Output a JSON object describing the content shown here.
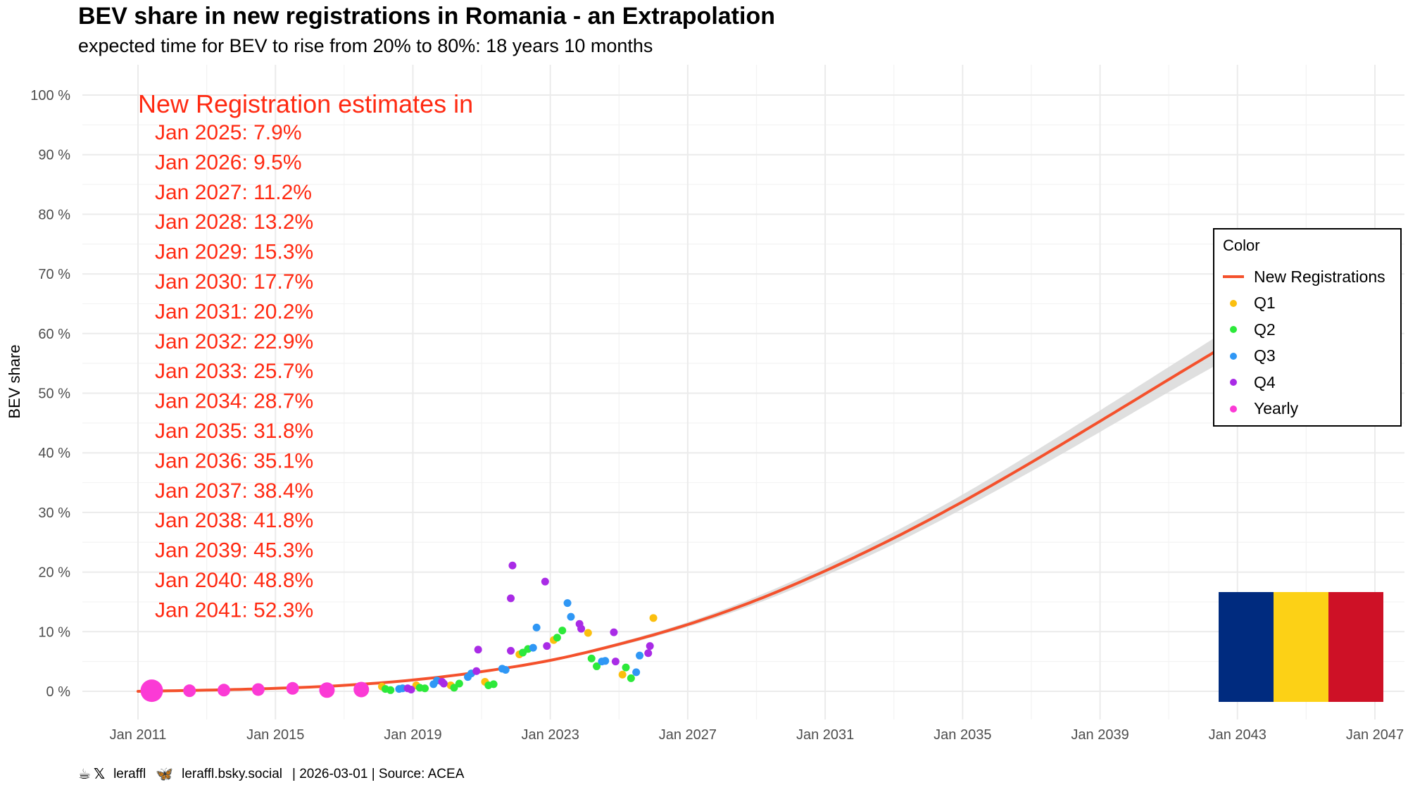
{
  "chart_data": {
    "type": "scatter",
    "title": "BEV share in new registrations in Romania - an Extrapolation",
    "subtitle": "expected time for BEV to rise from 20% to 80%: 18 years 10 months",
    "xlabel": "",
    "ylabel": "BEV share",
    "xlim": [
      2010.0,
      2047.0
    ],
    "ylim": [
      -2,
      102
    ],
    "x_ticks": [
      {
        "value": 2011,
        "label": "Jan 2011"
      },
      {
        "value": 2015,
        "label": "Jan 2015"
      },
      {
        "value": 2019,
        "label": "Jan 2019"
      },
      {
        "value": 2023,
        "label": "Jan 2023"
      },
      {
        "value": 2027,
        "label": "Jan 2027"
      },
      {
        "value": 2031,
        "label": "Jan 2031"
      },
      {
        "value": 2035,
        "label": "Jan 2035"
      },
      {
        "value": 2039,
        "label": "Jan 2039"
      },
      {
        "value": 2043,
        "label": "Jan 2043"
      },
      {
        "value": 2047,
        "label": "Jan 2047"
      }
    ],
    "y_ticks": [
      {
        "value": 0,
        "label": "0 %"
      },
      {
        "value": 10,
        "label": "10 %"
      },
      {
        "value": 20,
        "label": "20 %"
      },
      {
        "value": 30,
        "label": "30 %"
      },
      {
        "value": 40,
        "label": "40 %"
      },
      {
        "value": 50,
        "label": "50 %"
      },
      {
        "value": 60,
        "label": "60 %"
      },
      {
        "value": 70,
        "label": "70 %"
      },
      {
        "value": 80,
        "label": "80 %"
      },
      {
        "value": 90,
        "label": "90 %"
      },
      {
        "value": 100,
        "label": "100 %"
      }
    ],
    "grid": true,
    "legend_position": "right",
    "legend_title": "Color",
    "legend": [
      {
        "name": "New Registrations",
        "color": "#f4512c",
        "kind": "line"
      },
      {
        "name": "Q1",
        "color": "#fbbf0e",
        "kind": "point"
      },
      {
        "name": "Q2",
        "color": "#2ce93a",
        "kind": "point"
      },
      {
        "name": "Q3",
        "color": "#2f97f5",
        "kind": "point"
      },
      {
        "name": "Q4",
        "color": "#a92be6",
        "kind": "point"
      },
      {
        "name": "Yearly",
        "color": "#fb3ad5",
        "kind": "point"
      }
    ],
    "trend": {
      "name": "New Registrations",
      "color": "#f4512c",
      "x": [
        2011,
        2013,
        2015,
        2017,
        2019,
        2021,
        2023,
        2025,
        2027,
        2029,
        2031,
        2033,
        2035,
        2037,
        2039,
        2041,
        2042.5
      ],
      "y": [
        0.0,
        0.2,
        0.5,
        1.0,
        1.9,
        3.3,
        5.2,
        7.9,
        11.2,
        15.3,
        20.2,
        25.7,
        31.8,
        38.4,
        45.3,
        52.3,
        57.5
      ],
      "band_halfwidth": [
        0,
        0,
        0,
        0,
        0.1,
        0.2,
        0.2,
        0.3,
        0.4,
        0.6,
        0.8,
        1.0,
        1.2,
        1.5,
        1.8,
        2.1,
        2.4
      ]
    },
    "series": [
      {
        "name": "Yearly",
        "color": "#fb3ad5",
        "size": "large",
        "x": [
          2011.4,
          2012.5,
          2013.5,
          2014.5,
          2015.5,
          2016.5,
          2017.5
        ],
        "y": [
          0.1,
          0.1,
          0.2,
          0.3,
          0.5,
          0.2,
          0.3
        ]
      },
      {
        "name": "Q1",
        "color": "#fbbf0e",
        "x": [
          2018.1,
          2019.1,
          2020.1,
          2021.1,
          2022.1,
          2023.1,
          2024.1,
          2025.1,
          2026.0
        ],
        "y": [
          0.8,
          1.0,
          1.0,
          1.6,
          6.2,
          8.6,
          9.8,
          2.8,
          12.3
        ]
      },
      {
        "name": "Q2",
        "color": "#2ce93a",
        "x": [
          2018.35,
          2019.35,
          2020.35,
          2021.35,
          2022.35,
          2023.35,
          2024.35,
          2025.35
        ],
        "y": [
          0.2,
          0.5,
          1.3,
          1.2,
          7.1,
          10.2,
          4.2,
          2.2
        ],
        "x2": [
          2018.2,
          2019.2,
          2020.2,
          2021.2,
          2022.2,
          2023.2,
          2024.2,
          2025.2
        ],
        "y2": [
          0.4,
          0.6,
          0.6,
          1.0,
          6.5,
          9.0,
          5.5,
          4.0
        ]
      },
      {
        "name": "Q3",
        "color": "#2f97f5",
        "x": [
          2018.6,
          2019.6,
          2020.6,
          2021.6,
          2022.6,
          2023.6,
          2024.6,
          2025.6
        ],
        "y": [
          0.4,
          1.2,
          2.4,
          3.8,
          10.7,
          12.5,
          5.1,
          6.0
        ],
        "x2": [
          2018.7,
          2019.7,
          2020.7,
          2021.7,
          2022.5,
          2023.5,
          2024.5,
          2025.5
        ],
        "y2": [
          0.5,
          1.8,
          3.0,
          3.6,
          7.3,
          14.8,
          5.0,
          3.2
        ]
      },
      {
        "name": "Q4",
        "color": "#a92be6",
        "x": [
          2018.85,
          2019.85,
          2020.85,
          2021.85,
          2022.85,
          2023.85,
          2024.85,
          2025.85
        ],
        "y": [
          0.5,
          1.6,
          3.4,
          6.8,
          18.4,
          11.3,
          9.9,
          6.4
        ],
        "x2": [
          2018.95,
          2019.9,
          2020.9,
          2021.9,
          2022.9,
          2023.9,
          2024.9,
          2025.9
        ],
        "y2": [
          0.3,
          1.3,
          7.0,
          21.1,
          7.6,
          10.5,
          5.0,
          7.6
        ],
        "x3": [
          2021.85
        ],
        "y3": [
          15.6
        ]
      }
    ],
    "annotation": {
      "header": "New Registration estimates in",
      "lines": [
        "Jan 2025: 7.9%",
        "Jan 2026: 9.5%",
        "Jan 2027: 11.2%",
        "Jan 2028: 13.2%",
        "Jan 2029: 15.3%",
        "Jan 2030: 17.7%",
        "Jan 2031: 20.2%",
        "Jan 2032: 22.9%",
        "Jan 2033: 25.7%",
        "Jan 2034: 28.7%",
        "Jan 2035: 31.8%",
        "Jan 2036: 35.1%",
        "Jan 2037: 38.4%",
        "Jan 2038: 41.8%",
        "Jan 2039: 45.3%",
        "Jan 2040: 48.8%",
        "Jan 2041: 52.3%"
      ]
    }
  },
  "caption": {
    "handle_x": "leraffl",
    "handle_bsky": "leraffl.bsky.social",
    "meta": "| 2026-03-01 | Source: ACEA"
  },
  "icons": {
    "coffee": "coffee-icon",
    "x": "x-logo-icon",
    "butterfly": "butterfly-icon"
  },
  "flag_colors": [
    "#002b7f",
    "#fcd116",
    "#ce1126"
  ]
}
